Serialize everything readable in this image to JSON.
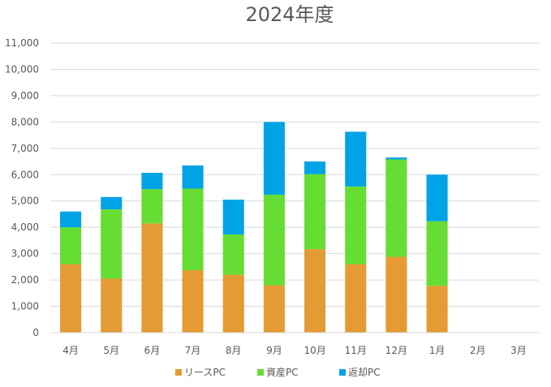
{
  "chart_data": {
    "type": "bar",
    "stacked": true,
    "title": "2024年度",
    "xlabel": "",
    "ylabel": "",
    "ylim": [
      0,
      11000
    ],
    "ytick_step": 1000,
    "y_ticks": [
      "0",
      "1,000",
      "2,000",
      "3,000",
      "4,000",
      "5,000",
      "6,000",
      "7,000",
      "8,000",
      "9,000",
      "10,000",
      "11,000"
    ],
    "categories": [
      "4月",
      "5月",
      "6月",
      "7月",
      "8月",
      "9月",
      "10月",
      "11月",
      "12月",
      "1月",
      "2月",
      "3月"
    ],
    "series": [
      {
        "name": "リースPC",
        "color": "#E59B33",
        "values": [
          2600,
          2050,
          4150,
          2370,
          2200,
          1800,
          3170,
          2600,
          2880,
          1780,
          0,
          0
        ]
      },
      {
        "name": "資産PC",
        "color": "#66DD33",
        "values": [
          1400,
          2630,
          1300,
          3100,
          1530,
          3440,
          2850,
          2950,
          3700,
          2450,
          0,
          0
        ]
      },
      {
        "name": "返却PC",
        "color": "#00A3E5",
        "values": [
          600,
          470,
          620,
          880,
          1320,
          2760,
          480,
          2080,
          70,
          1770,
          0,
          0
        ]
      }
    ],
    "grid": true,
    "legend_position": "bottom"
  }
}
